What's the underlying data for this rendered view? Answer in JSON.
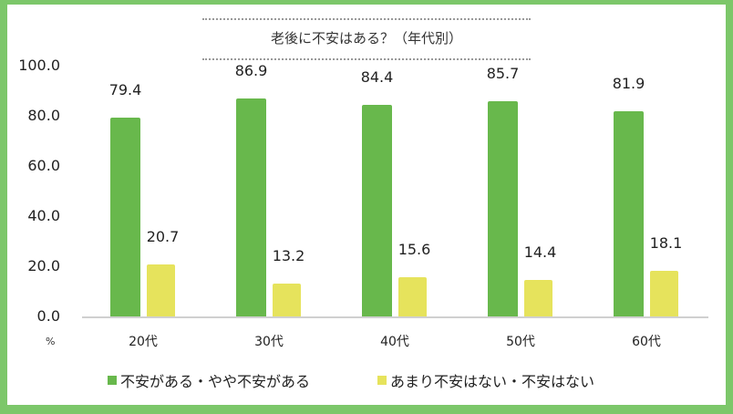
{
  "title": "老後に不安はある？（年代別）",
  "unit_label": "%",
  "colors": {
    "frame": "#7cc76a",
    "series1": "#68b84c",
    "series2": "#e6e35c"
  },
  "chart_data": {
    "type": "bar",
    "title": "老後に不安はある？（年代別）",
    "xlabel": "",
    "ylabel": "%",
    "ylim": [
      0,
      100
    ],
    "yticks": [
      "100.0",
      "80.0",
      "60.0",
      "40.0",
      "20.0",
      "0.0"
    ],
    "categories": [
      "20代",
      "30代",
      "40代",
      "50代",
      "60代"
    ],
    "series": [
      {
        "name": "不安がある・やや不安がある",
        "values": [
          79.4,
          86.9,
          84.4,
          85.7,
          81.9
        ],
        "labels": [
          "79.4",
          "86.9",
          "84.4",
          "85.7",
          "81.9"
        ]
      },
      {
        "name": "あまり不安はない・不安はない",
        "values": [
          20.7,
          13.2,
          15.6,
          14.4,
          18.1
        ],
        "labels": [
          "20.7",
          "13.2",
          "15.6",
          "14.4",
          "18.1"
        ]
      }
    ],
    "legend_position": "bottom",
    "grid": false
  }
}
